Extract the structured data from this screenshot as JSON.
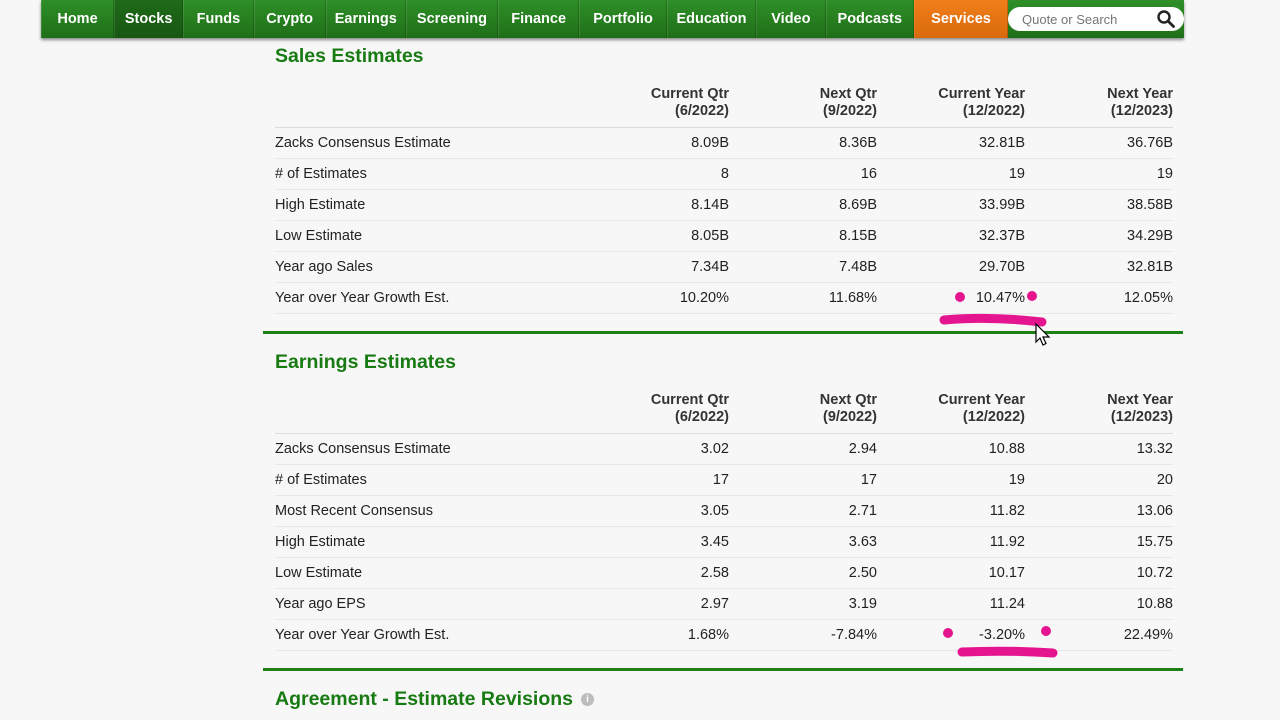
{
  "nav": {
    "items": [
      "Home",
      "Stocks",
      "Funds",
      "Crypto",
      "Earnings",
      "Screening",
      "Finance",
      "Portfolio",
      "Education",
      "Video",
      "Podcasts",
      "Services"
    ],
    "active": "Stocks",
    "search_placeholder": "Quote or Search"
  },
  "sales": {
    "title": "Sales Estimates",
    "headers": [
      {
        "line1": "Current Qtr",
        "line2": "(6/2022)"
      },
      {
        "line1": "Next Qtr",
        "line2": "(9/2022)"
      },
      {
        "line1": "Current Year",
        "line2": "(12/2022)"
      },
      {
        "line1": "Next Year",
        "line2": "(12/2023)"
      }
    ],
    "rows": [
      {
        "label": "Zacks Consensus Estimate",
        "values": [
          "8.09B",
          "8.36B",
          "32.81B",
          "36.76B"
        ]
      },
      {
        "label": "# of Estimates",
        "values": [
          "8",
          "16",
          "19",
          "19"
        ]
      },
      {
        "label": "High Estimate",
        "values": [
          "8.14B",
          "8.69B",
          "33.99B",
          "38.58B"
        ]
      },
      {
        "label": "Low Estimate",
        "values": [
          "8.05B",
          "8.15B",
          "32.37B",
          "34.29B"
        ]
      },
      {
        "label": "Year ago Sales",
        "values": [
          "7.34B",
          "7.48B",
          "29.70B",
          "32.81B"
        ]
      },
      {
        "label": "Year over Year Growth Est.",
        "values": [
          "10.20%",
          "11.68%",
          "10.47%",
          "12.05%"
        ]
      }
    ]
  },
  "earnings": {
    "title": "Earnings Estimates",
    "headers": [
      {
        "line1": "Current Qtr",
        "line2": "(6/2022)"
      },
      {
        "line1": "Next Qtr",
        "line2": "(9/2022)"
      },
      {
        "line1": "Current Year",
        "line2": "(12/2022)"
      },
      {
        "line1": "Next Year",
        "line2": "(12/2023)"
      }
    ],
    "rows": [
      {
        "label": "Zacks Consensus Estimate",
        "values": [
          "3.02",
          "2.94",
          "10.88",
          "13.32"
        ]
      },
      {
        "label": "# of Estimates",
        "values": [
          "17",
          "17",
          "19",
          "20"
        ]
      },
      {
        "label": "Most Recent Consensus",
        "values": [
          "3.05",
          "2.71",
          "11.82",
          "13.06"
        ]
      },
      {
        "label": "High Estimate",
        "values": [
          "3.45",
          "3.63",
          "11.92",
          "15.75"
        ]
      },
      {
        "label": "Low Estimate",
        "values": [
          "2.58",
          "2.50",
          "10.17",
          "10.72"
        ]
      },
      {
        "label": "Year ago EPS",
        "values": [
          "2.97",
          "3.19",
          "11.24",
          "10.88"
        ]
      },
      {
        "label": "Year over Year Growth Est.",
        "values": [
          "1.68%",
          "-7.84%",
          "-3.20%",
          "22.49%"
        ]
      }
    ]
  },
  "agreement": {
    "title": "Agreement - Estimate Revisions",
    "info_icon": "i"
  },
  "colors": {
    "nav_green": "#2f8f28",
    "services_orange": "#f07f1a",
    "title_green": "#187a12",
    "annotation_magenta": "#e5158f"
  }
}
